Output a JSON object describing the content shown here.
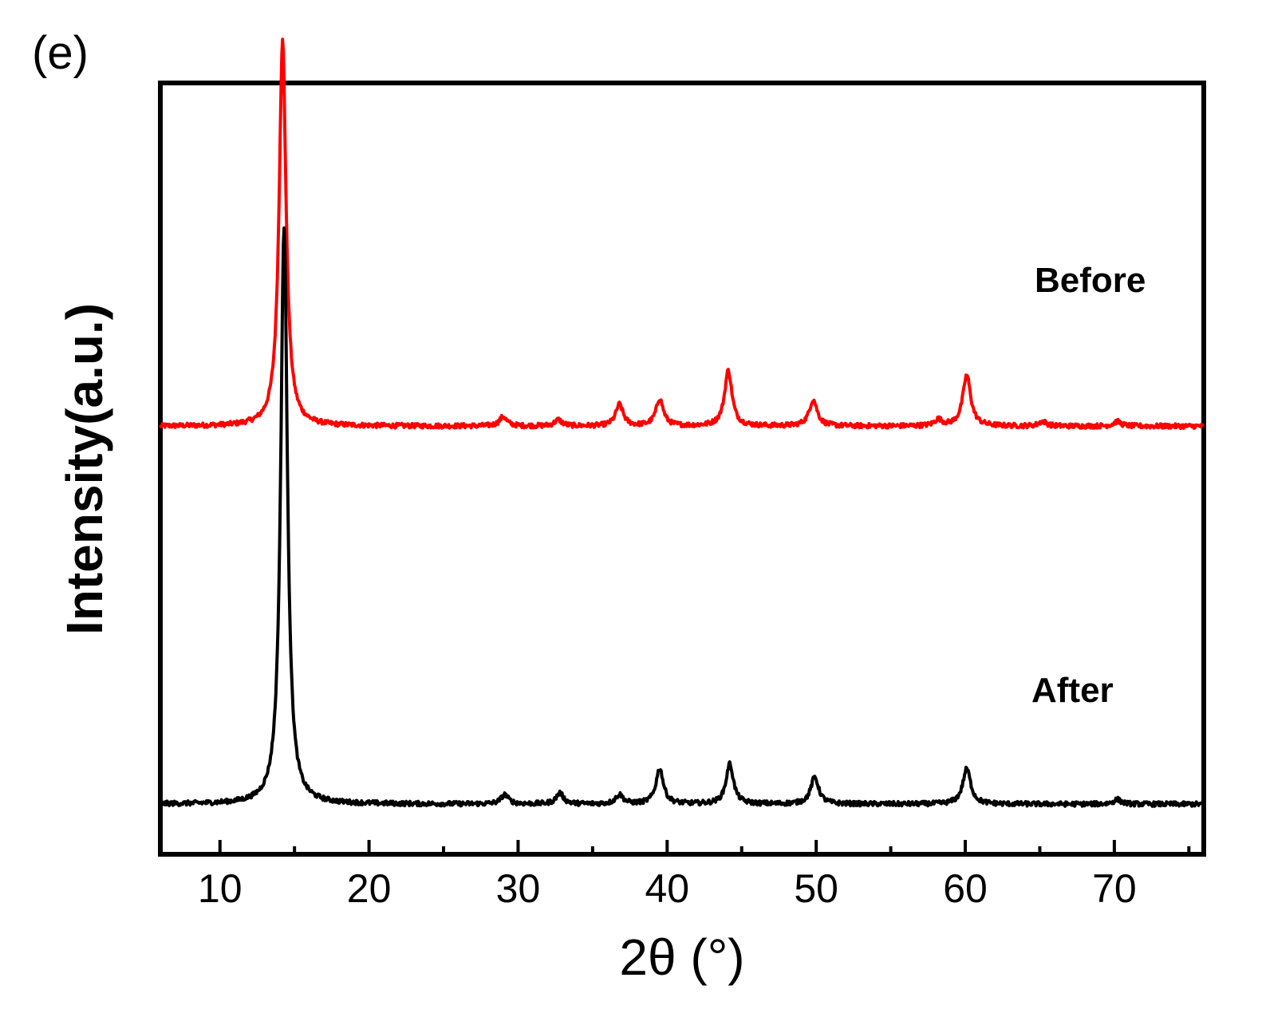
{
  "panel_label": "(e)",
  "chart_data": {
    "type": "line",
    "title": "",
    "xlabel": "2θ (°)",
    "ylabel": "Intensity(a.u.)",
    "xlim": [
      6,
      76
    ],
    "xticks": [
      10,
      20,
      30,
      40,
      50,
      60,
      70
    ],
    "xtick_labels": [
      "10",
      "20",
      "30",
      "40",
      "50",
      "60",
      "70"
    ],
    "x_minor_step": 5,
    "y_ticks_shown": false,
    "grid": false,
    "legend": "none",
    "series": [
      {
        "name": "Before",
        "color": "#ff0000",
        "baseline": 0.555,
        "peaks": [
          {
            "x": 14.2,
            "height": 0.5,
            "width": 0.28
          },
          {
            "x": 29.0,
            "height": 0.012,
            "width": 0.3
          },
          {
            "x": 32.7,
            "height": 0.008,
            "width": 0.3
          },
          {
            "x": 36.8,
            "height": 0.028,
            "width": 0.3
          },
          {
            "x": 39.5,
            "height": 0.035,
            "width": 0.3
          },
          {
            "x": 44.1,
            "height": 0.072,
            "width": 0.3
          },
          {
            "x": 49.8,
            "height": 0.034,
            "width": 0.32
          },
          {
            "x": 58.2,
            "height": 0.008,
            "width": 0.3
          },
          {
            "x": 60.1,
            "height": 0.066,
            "width": 0.32
          },
          {
            "x": 65.2,
            "height": 0.006,
            "width": 0.3
          },
          {
            "x": 70.2,
            "height": 0.006,
            "width": 0.3
          }
        ]
      },
      {
        "name": "After",
        "color": "#000000",
        "baseline": 0.065,
        "peaks": [
          {
            "x": 14.3,
            "height": 0.75,
            "width": 0.27
          },
          {
            "x": 29.1,
            "height": 0.012,
            "width": 0.3
          },
          {
            "x": 32.8,
            "height": 0.014,
            "width": 0.3
          },
          {
            "x": 36.8,
            "height": 0.012,
            "width": 0.3
          },
          {
            "x": 39.5,
            "height": 0.046,
            "width": 0.3
          },
          {
            "x": 44.2,
            "height": 0.052,
            "width": 0.3
          },
          {
            "x": 49.9,
            "height": 0.035,
            "width": 0.32
          },
          {
            "x": 60.1,
            "height": 0.046,
            "width": 0.32
          },
          {
            "x": 70.2,
            "height": 0.006,
            "width": 0.3
          }
        ]
      }
    ]
  }
}
